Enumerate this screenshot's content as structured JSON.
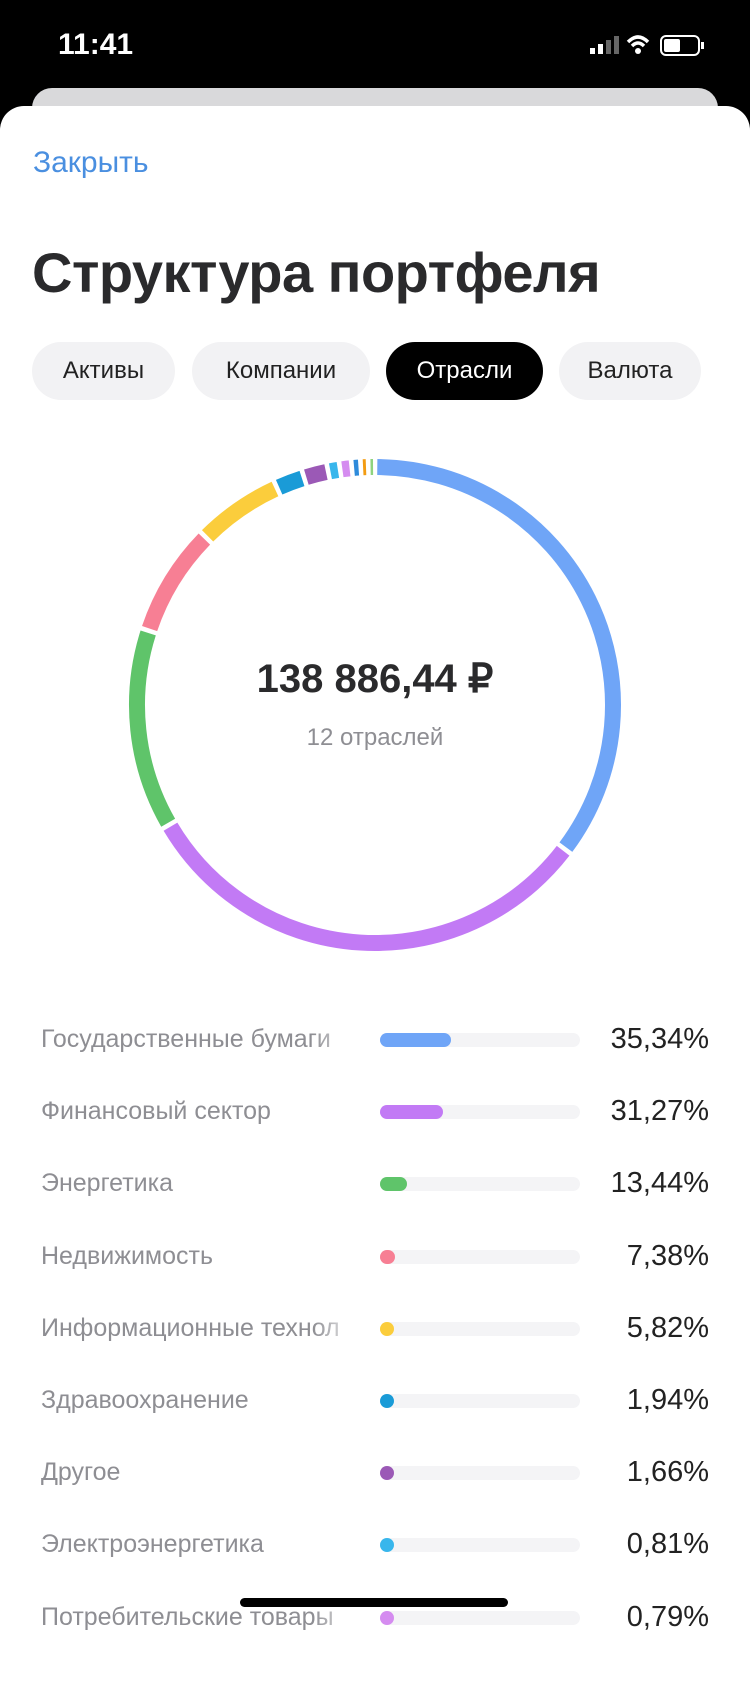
{
  "status_bar": {
    "time": "11:41"
  },
  "header": {
    "close": "Закрыть",
    "title": "Структура портфеля"
  },
  "tabs": [
    {
      "label": "Активы",
      "active": false
    },
    {
      "label": "Компании",
      "active": false
    },
    {
      "label": "Отрасли",
      "active": true
    },
    {
      "label": "Валюта",
      "active": false
    }
  ],
  "summary": {
    "total": "138 886,44 ₽",
    "subtitle": "12 отраслей"
  },
  "rows": [
    {
      "name": "Государственные бумаги",
      "value": 35.34,
      "label": "35,34%",
      "color": "#6fa5f7"
    },
    {
      "name": "Финансовый сектор",
      "value": 31.27,
      "label": "31,27%",
      "color": "#c27af5"
    },
    {
      "name": "Энергетика",
      "value": 13.44,
      "label": "13,44%",
      "color": "#5fc46a"
    },
    {
      "name": "Недвижимость",
      "value": 7.38,
      "label": "7,38%",
      "color": "#f77f94"
    },
    {
      "name": "Информационные технол",
      "value": 5.82,
      "label": "5,82%",
      "color": "#fbcd3c"
    },
    {
      "name": "Здравоохранение",
      "value": 1.94,
      "label": "1,94%",
      "color": "#1a9bd7"
    },
    {
      "name": "Другое",
      "value": 1.66,
      "label": "1,66%",
      "color": "#9b59b6"
    },
    {
      "name": "Электроэнергетика",
      "value": 0.81,
      "label": "0,81%",
      "color": "#38b6ec"
    },
    {
      "name": "Потребительские товары",
      "value": 0.79,
      "label": "0,79%",
      "color": "#d58cf0"
    }
  ],
  "donut_other": [
    {
      "value": 0.6,
      "color": "#2e8bdb"
    },
    {
      "value": 0.5,
      "color": "#f39c12"
    },
    {
      "value": 0.45,
      "color": "#8fd37e"
    }
  ]
}
